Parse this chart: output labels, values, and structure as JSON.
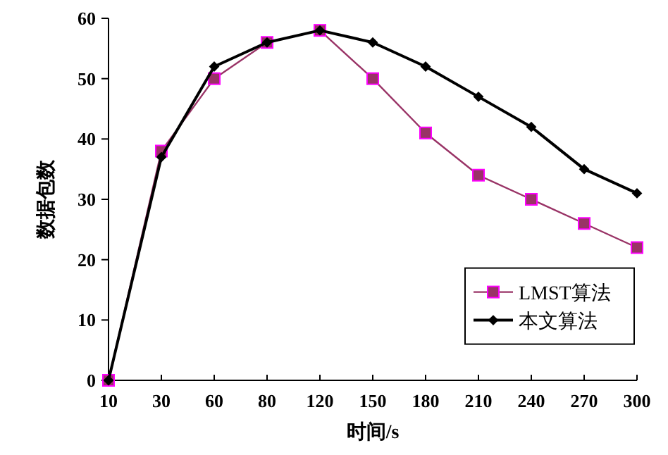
{
  "chart_data": {
    "type": "line",
    "xlabel": "时间/s",
    "ylabel": "数据包数",
    "categories": [
      "10",
      "30",
      "60",
      "80",
      "120",
      "150",
      "180",
      "210",
      "240",
      "270",
      "300"
    ],
    "series": [
      {
        "name": "LMST算法",
        "color": "#993366",
        "marker": "square",
        "values": [
          0,
          38,
          50,
          56,
          58,
          50,
          41,
          34,
          30,
          26,
          22
        ]
      },
      {
        "name": "本文算法",
        "color": "#000000",
        "marker": "diamond",
        "values": [
          0,
          37,
          52,
          56,
          58,
          56,
          52,
          47,
          42,
          35,
          31
        ]
      }
    ],
    "ylim": [
      0,
      60
    ],
    "yticks": [
      0,
      10,
      20,
      30,
      40,
      50,
      60
    ],
    "legend": "bottom right",
    "grid": false
  }
}
